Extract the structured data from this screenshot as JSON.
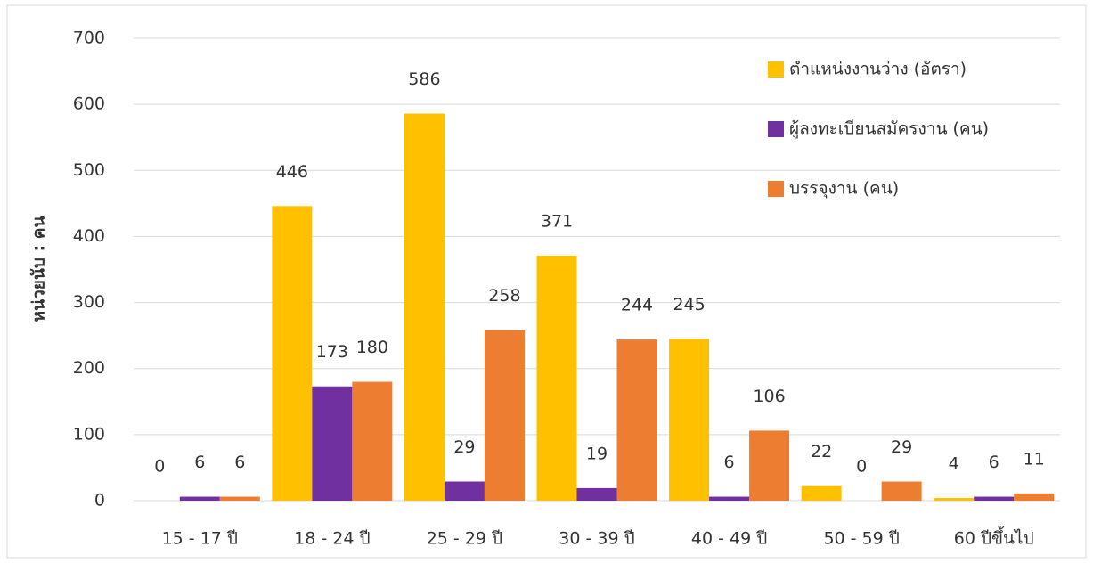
{
  "chart_data": {
    "type": "bar",
    "y_label": "หน่วยนับ : คน",
    "categories": [
      "15 - 17 ปี",
      "18 - 24 ปี",
      "25 - 29 ปี",
      "30 - 39 ปี",
      "40 - 49 ปี",
      "50 - 59 ปี",
      "60 ปีขึ้นไป"
    ],
    "series": [
      {
        "name": "ตำแหน่งงานว่าง (อัตรา)",
        "color": "#ffc000",
        "values": [
          0,
          446,
          586,
          371,
          245,
          22,
          4
        ]
      },
      {
        "name": "ผู้ลงทะเบียนสมัครงาน (คน)",
        "color": "#7030a0",
        "values": [
          6,
          173,
          29,
          19,
          6,
          0,
          6
        ]
      },
      {
        "name": "บรรจุงาน (คน)",
        "color": "#ed7d31",
        "values": [
          6,
          180,
          258,
          244,
          106,
          29,
          11
        ]
      }
    ],
    "ylim": [
      0,
      700
    ],
    "yticks": [
      0,
      100,
      200,
      300,
      400,
      500,
      600,
      700
    ],
    "grid": true,
    "legend": "top-right"
  }
}
